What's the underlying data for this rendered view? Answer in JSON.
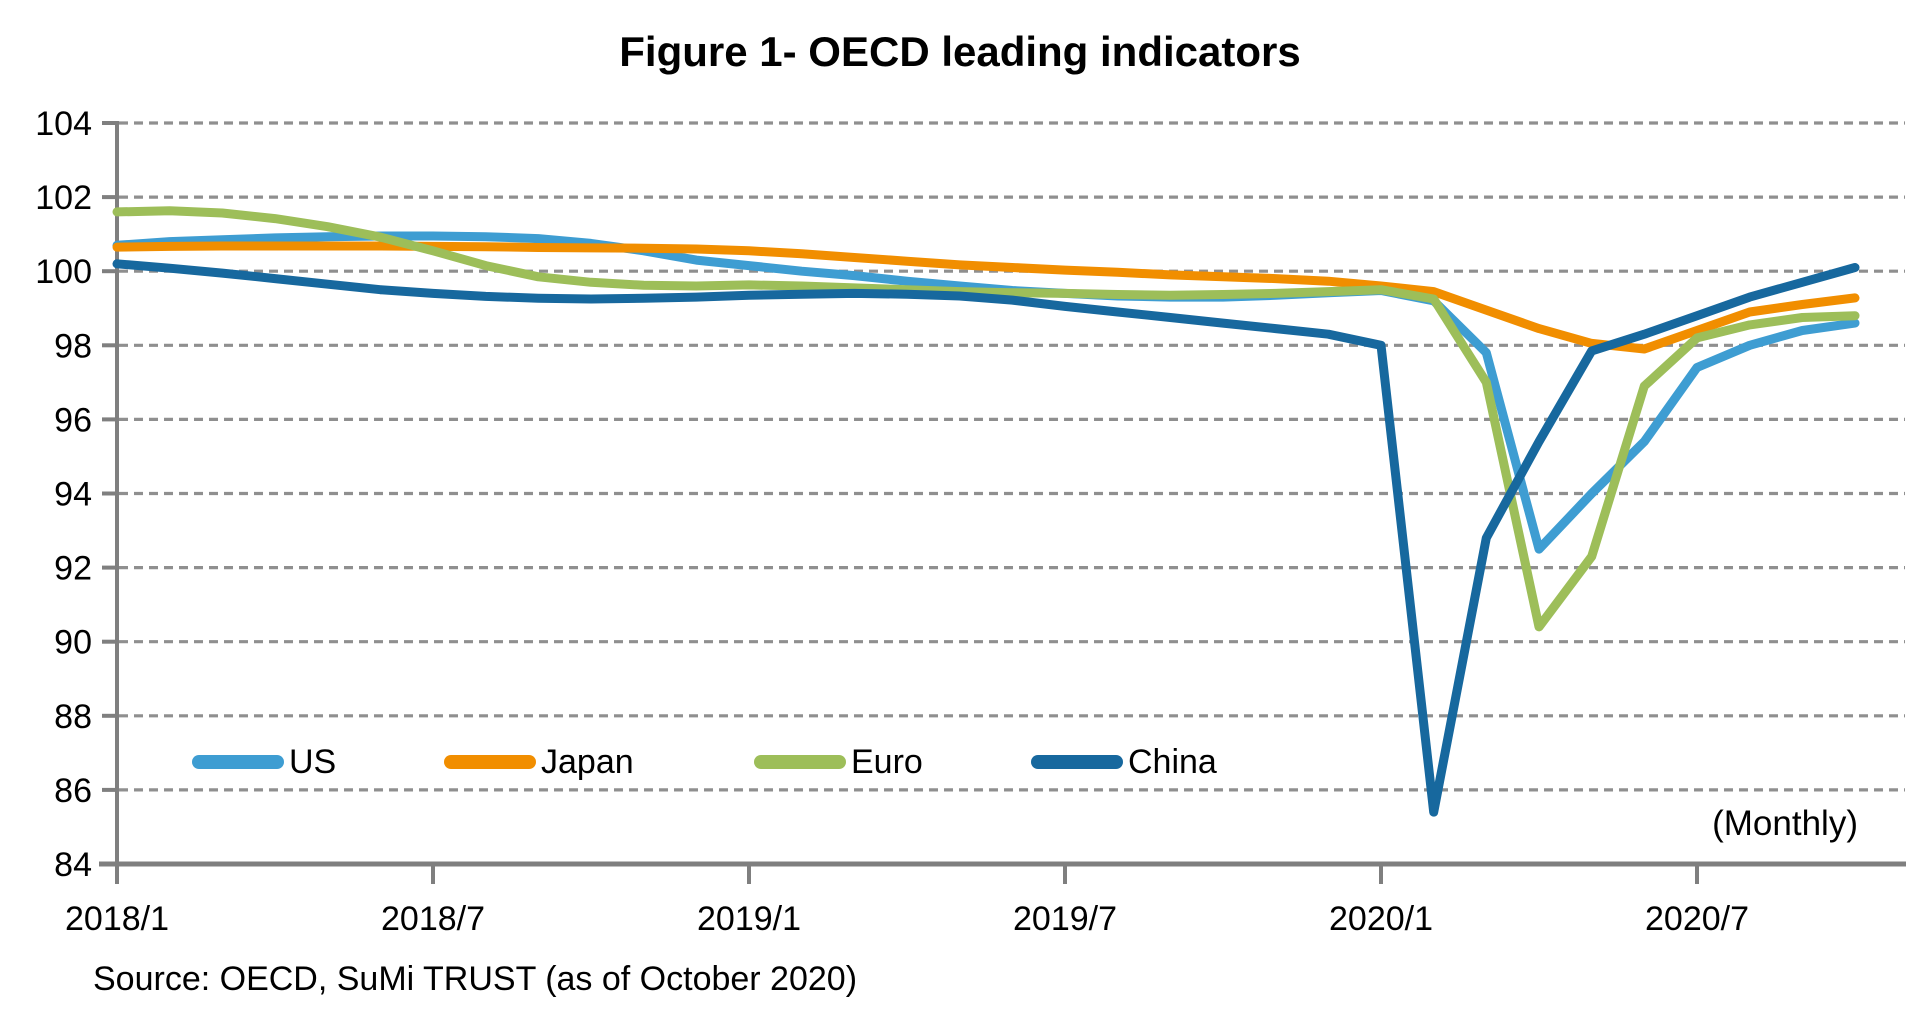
{
  "title": "Figure 1- OECD leading indicators",
  "monthly_note": "(Monthly)",
  "source": "Source: OECD, SuMi TRUST (as of October 2020)",
  "colors": {
    "us_line": "#3E9DD2",
    "japan_line": "#F18E00",
    "euro_line": "#9DBE59",
    "china_line": "#17689E",
    "gridline": "#8F8F8F",
    "axis": "#7F7F7F",
    "text": "#000000"
  },
  "chart_data": {
    "type": "line",
    "title": "Figure 1- OECD leading indicators",
    "xlabel": "",
    "ylabel": "",
    "ylim": [
      84,
      104
    ],
    "y_ticks": [
      104,
      102,
      100,
      98,
      96,
      94,
      92,
      90,
      88,
      86,
      84
    ],
    "grid": "horizontal-dashed",
    "legend_position": "inside-bottom-left",
    "frequency_note": "(Monthly)",
    "x": [
      "2018/1",
      "2018/2",
      "2018/3",
      "2018/4",
      "2018/5",
      "2018/6",
      "2018/7",
      "2018/8",
      "2018/9",
      "2018/10",
      "2018/11",
      "2018/12",
      "2019/1",
      "2019/2",
      "2019/3",
      "2019/4",
      "2019/5",
      "2019/6",
      "2019/7",
      "2019/8",
      "2019/9",
      "2019/10",
      "2019/11",
      "2019/12",
      "2020/1",
      "2020/2",
      "2020/3",
      "2020/4",
      "2020/5",
      "2020/6",
      "2020/7",
      "2020/8",
      "2020/9",
      "2020/10"
    ],
    "x_tick_labels": [
      "2018/1",
      "2018/7",
      "2019/1",
      "2019/7",
      "2020/1",
      "2020/7"
    ],
    "series": [
      {
        "name": "US",
        "color": "#3E9DD2",
        "values": [
          100.7,
          100.8,
          100.85,
          100.9,
          100.93,
          100.95,
          100.95,
          100.93,
          100.88,
          100.75,
          100.55,
          100.3,
          100.15,
          100.0,
          99.88,
          99.73,
          99.6,
          99.48,
          99.4,
          99.33,
          99.3,
          99.3,
          99.35,
          99.42,
          99.48,
          99.2,
          97.8,
          92.5,
          94.0,
          95.4,
          97.4,
          98.0,
          98.4,
          98.6
        ]
      },
      {
        "name": "Japan",
        "color": "#F18E00",
        "values": [
          100.65,
          100.67,
          100.68,
          100.68,
          100.68,
          100.68,
          100.67,
          100.66,
          100.64,
          100.63,
          100.62,
          100.6,
          100.55,
          100.47,
          100.37,
          100.27,
          100.17,
          100.1,
          100.03,
          99.97,
          99.9,
          99.85,
          99.8,
          99.73,
          99.6,
          99.45,
          98.95,
          98.45,
          98.05,
          97.9,
          98.4,
          98.9,
          99.1,
          99.28
        ]
      },
      {
        "name": "Euro",
        "color": "#9DBE59",
        "values": [
          101.6,
          101.63,
          101.57,
          101.42,
          101.2,
          100.92,
          100.55,
          100.15,
          99.85,
          99.7,
          99.62,
          99.6,
          99.63,
          99.6,
          99.55,
          99.5,
          99.45,
          99.42,
          99.4,
          99.37,
          99.35,
          99.37,
          99.4,
          99.45,
          99.5,
          99.25,
          97.0,
          90.4,
          92.3,
          96.9,
          98.2,
          98.55,
          98.75,
          98.8
        ]
      },
      {
        "name": "China",
        "color": "#17689E",
        "values": [
          100.2,
          100.08,
          99.95,
          99.8,
          99.65,
          99.5,
          99.4,
          99.32,
          99.27,
          99.25,
          99.27,
          99.3,
          99.35,
          99.38,
          99.4,
          99.38,
          99.33,
          99.22,
          99.05,
          98.9,
          98.75,
          98.6,
          98.45,
          98.3,
          98.0,
          85.4,
          92.8,
          95.4,
          97.85,
          98.3,
          98.8,
          99.3,
          99.7,
          100.1
        ]
      }
    ]
  }
}
